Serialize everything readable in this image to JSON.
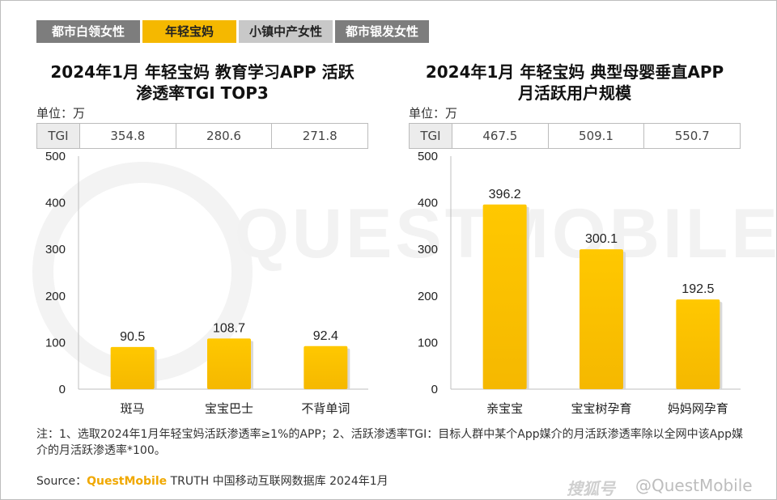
{
  "tabs": [
    "都市白领女性",
    "年轻宝妈",
    "小镇中产女性",
    "都市银发女性"
  ],
  "active_tab": 1,
  "left": {
    "title_line1": "2024年1月 年轻宝妈 教育学习APP 活跃",
    "title_line2": "渗透率TGI TOP3",
    "unit": "单位：万",
    "tgi_label": "TGI",
    "tgi_values": [
      "354.8",
      "280.6",
      "271.8"
    ]
  },
  "right": {
    "title_line1": "2024年1月 年轻宝妈 典型母婴垂直APP",
    "title_line2": "月活跃用户规模",
    "unit": "单位：万",
    "tgi_label": "TGI",
    "tgi_values": [
      "467.5",
      "509.1",
      "550.7"
    ]
  },
  "chart_data": [
    {
      "type": "bar",
      "title": "2024年1月 年轻宝妈 教育学习APP 活跃渗透率TGI TOP3",
      "categories": [
        "斑马",
        "宝宝巴士",
        "不背单词"
      ],
      "values": [
        90.5,
        108.7,
        92.4
      ],
      "value_labels": [
        "90.5",
        "108.7",
        "92.4"
      ],
      "yticks": [
        "0",
        "100",
        "200",
        "300",
        "400",
        "500"
      ],
      "ylim": [
        0,
        500
      ],
      "bar_color": "#f5b800"
    },
    {
      "type": "bar",
      "title": "2024年1月 年轻宝妈 典型母婴垂直APP 月活跃用户规模",
      "categories": [
        "亲宝宝",
        "宝宝树孕育",
        "妈妈网孕育"
      ],
      "values": [
        396.2,
        300.1,
        192.5
      ],
      "value_labels": [
        "396.2",
        "300.1",
        "192.5"
      ],
      "yticks": [
        "0",
        "100",
        "200",
        "300",
        "400",
        "500"
      ],
      "ylim": [
        0,
        500
      ],
      "bar_color": "#f5b800"
    }
  ],
  "note": "注：1、选取2024年1月年轻宝妈活跃渗透率≥1%的APP；2、活跃渗透率TGI：目标人群中某个App媒介的月活跃渗透率除以全网中该App媒介的月活跃渗透率*100。",
  "source": {
    "prefix": "Source：",
    "brand": "QuestMobile",
    "rest": " TRUTH 中国移动互联网数据库 2024年1月"
  },
  "watermark": {
    "big": "QUESTMOBILE",
    "corner_left": "搜狐号",
    "corner_right": "@QuestMobile"
  }
}
